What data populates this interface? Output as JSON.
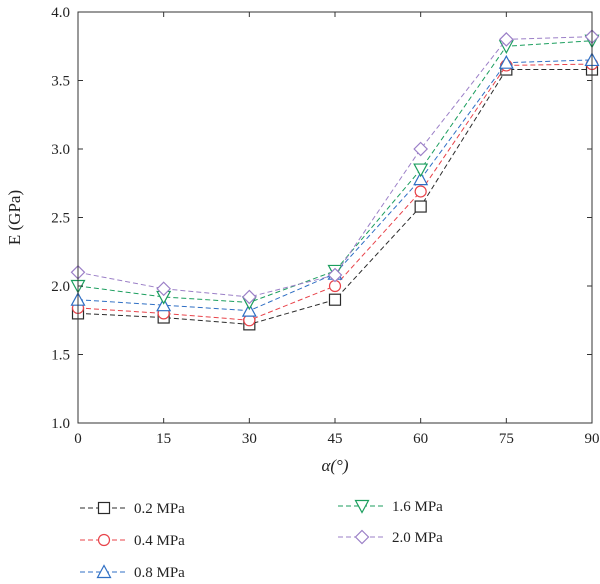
{
  "chart_data": {
    "type": "line",
    "title": "",
    "xlabel": "α(°)",
    "ylabel": "E (GPa)",
    "x": [
      0,
      15,
      30,
      45,
      60,
      75,
      90
    ],
    "xlim": [
      0,
      90
    ],
    "ylim": [
      1.0,
      4.0
    ],
    "xticks": [
      "0",
      "15",
      "30",
      "45",
      "60",
      "75",
      "90"
    ],
    "yticks": [
      "1.0",
      "1.5",
      "2.0",
      "2.5",
      "3.0",
      "3.5",
      "4.0"
    ],
    "grid": false,
    "legend_position": "bottom",
    "series": [
      {
        "name": "0.2 MPa",
        "marker": "square",
        "color": "#2b2b2b",
        "values": [
          1.8,
          1.77,
          1.72,
          1.9,
          2.58,
          3.58,
          3.58
        ]
      },
      {
        "name": "0.4 MPa",
        "marker": "circle",
        "color": "#e8434a",
        "values": [
          1.84,
          1.8,
          1.75,
          2.0,
          2.69,
          3.61,
          3.62
        ]
      },
      {
        "name": "0.8 MPa",
        "marker": "triangle-up",
        "color": "#2f6fc4",
        "values": [
          1.9,
          1.86,
          1.82,
          2.09,
          2.78,
          3.63,
          3.65
        ]
      },
      {
        "name": "1.6 MPa",
        "marker": "triangle-down",
        "color": "#1b9e5e",
        "values": [
          2.0,
          1.92,
          1.88,
          2.11,
          2.85,
          3.75,
          3.79
        ]
      },
      {
        "name": "2.0 MPa",
        "marker": "diamond",
        "color": "#9b7fc7",
        "values": [
          2.1,
          1.98,
          1.92,
          2.08,
          3.0,
          3.8,
          3.82
        ]
      }
    ]
  }
}
